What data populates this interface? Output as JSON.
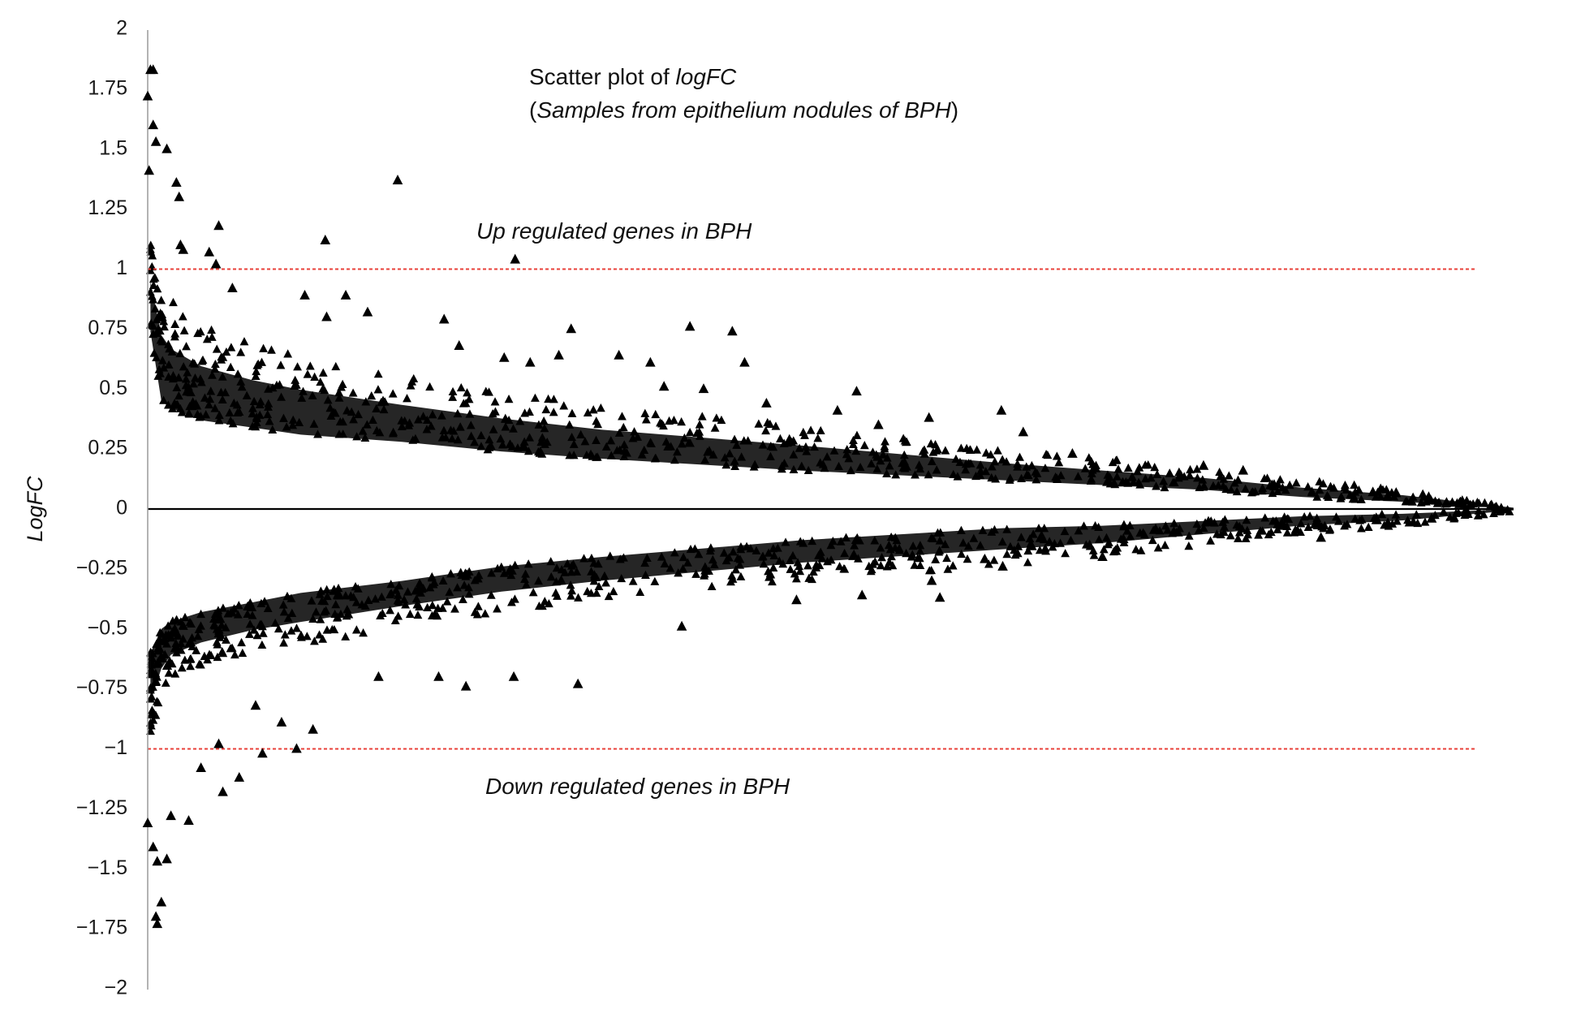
{
  "chart_data": {
    "type": "scatter",
    "title_line1_prefix": "Scatter plot of ",
    "title_line1_italic": "logFC",
    "title_line2_open": "(",
    "title_line2_italic": "Samples from epithelium nodules of BPH",
    "title_line2_close": ")",
    "ylabel": "LogFC",
    "xlabel": "",
    "ylim": [
      -2,
      2
    ],
    "xlim": [
      0,
      1000
    ],
    "yticks": [
      2,
      1.75,
      1.5,
      1.25,
      1,
      0.75,
      0.5,
      0.25,
      0,
      -0.25,
      -0.5,
      -0.75,
      -1,
      -1.25,
      -1.5,
      -1.75,
      -2
    ],
    "ytick_labels": [
      "2",
      "1.75",
      "1.5",
      "1.25",
      "1",
      "0.75",
      "0.5",
      "0.25",
      "0",
      "−0.25",
      "−0.5",
      "−0.75",
      "−1",
      "−1.25",
      "−1.5",
      "−1.75",
      "−2"
    ],
    "marker": "triangle",
    "marker_color": "#000000",
    "grid": false,
    "reference_lines": [
      {
        "y": 1,
        "color": "#e8403a",
        "style": "dashed"
      },
      {
        "y": -1,
        "color": "#e8403a",
        "style": "dashed"
      },
      {
        "y": 0,
        "color": "#000000",
        "style": "solid"
      }
    ],
    "annotations": {
      "up": "Up regulated genes in BPH",
      "down": "Down regulated genes in BPH"
    },
    "dense_bands": {
      "x": [
        2,
        10,
        17,
        39,
        76,
        112,
        186,
        259,
        332,
        479,
        626,
        699,
        773,
        846,
        919,
        1000
      ],
      "up_lower": [
        0.74,
        0.45,
        0.42,
        0.37,
        0.34,
        0.31,
        0.28,
        0.24,
        0.21,
        0.16,
        0.12,
        0.1,
        0.08,
        0.05,
        0.03,
        0.0
      ],
      "up_upper": [
        1.12,
        0.95,
        0.87,
        0.78,
        0.7,
        0.65,
        0.56,
        0.49,
        0.43,
        0.35,
        0.25,
        0.21,
        0.17,
        0.12,
        0.08,
        0.01
      ],
      "down_upper": [
        -0.6,
        -0.5,
        -0.47,
        -0.43,
        -0.39,
        -0.35,
        -0.3,
        -0.24,
        -0.2,
        -0.13,
        -0.08,
        -0.07,
        -0.05,
        -0.03,
        -0.02,
        0.0
      ],
      "down_lower": [
        -0.97,
        -0.8,
        -0.72,
        -0.66,
        -0.6,
        -0.57,
        -0.49,
        -0.43,
        -0.38,
        -0.3,
        -0.24,
        -0.2,
        -0.15,
        -0.1,
        -0.07,
        -0.01
      ]
    },
    "series": [
      {
        "points": [
          [
            2,
            1.83
          ],
          [
            4,
            1.83
          ],
          [
            0,
            1.72
          ],
          [
            4,
            1.6
          ],
          [
            6,
            1.53
          ],
          [
            14,
            1.5
          ],
          [
            1,
            1.41
          ],
          [
            21,
            1.36
          ],
          [
            23,
            1.3
          ],
          [
            52,
            1.18
          ],
          [
            183,
            1.37
          ],
          [
            130,
            1.12
          ],
          [
            269,
            1.04
          ],
          [
            45,
            1.07
          ],
          [
            50,
            1.02
          ],
          [
            24,
            1.1
          ],
          [
            26,
            1.08
          ],
          [
            62,
            0.92
          ],
          [
            115,
            0.89
          ],
          [
            145,
            0.89
          ],
          [
            161,
            0.82
          ],
          [
            131,
            0.8
          ],
          [
            217,
            0.79
          ],
          [
            310,
            0.75
          ],
          [
            397,
            0.76
          ],
          [
            428,
            0.74
          ],
          [
            437,
            0.61
          ],
          [
            345,
            0.64
          ],
          [
            368,
            0.61
          ],
          [
            378,
            0.51
          ],
          [
            407,
            0.5
          ],
          [
            519,
            0.49
          ],
          [
            453,
            0.44
          ],
          [
            625,
            0.41
          ],
          [
            572,
            0.38
          ],
          [
            505,
            0.41
          ],
          [
            535,
            0.35
          ],
          [
            228,
            0.68
          ],
          [
            261,
            0.63
          ],
          [
            280,
            0.61
          ],
          [
            301,
            0.64
          ],
          [
            641,
            0.32
          ],
          [
            677,
            0.23
          ],
          [
            773,
            0.18
          ],
          [
            802,
            0.16
          ],
          [
            897,
            0.07
          ]
        ]
      },
      {
        "points": [
          [
            0,
            -1.31
          ],
          [
            4,
            -1.41
          ],
          [
            7,
            -1.47
          ],
          [
            14,
            -1.46
          ],
          [
            10,
            -1.64
          ],
          [
            6,
            -1.7
          ],
          [
            7,
            -1.73
          ],
          [
            30,
            -1.3
          ],
          [
            17,
            -1.28
          ],
          [
            55,
            -1.18
          ],
          [
            67,
            -1.12
          ],
          [
            84,
            -1.02
          ],
          [
            109,
            -1.0
          ],
          [
            121,
            -0.92
          ],
          [
            39,
            -1.08
          ],
          [
            52,
            -0.98
          ],
          [
            315,
            -0.73
          ],
          [
            268,
            -0.7
          ],
          [
            233,
            -0.74
          ],
          [
            213,
            -0.7
          ],
          [
            169,
            -0.7
          ],
          [
            391,
            -0.49
          ],
          [
            580,
            -0.37
          ],
          [
            574,
            -0.3
          ],
          [
            523,
            -0.36
          ],
          [
            475,
            -0.38
          ],
          [
            626,
            -0.24
          ],
          [
            699,
            -0.2
          ],
          [
            859,
            -0.12
          ],
          [
            940,
            -0.04
          ],
          [
            98,
            -0.89
          ],
          [
            79,
            -0.82
          ]
        ]
      }
    ]
  }
}
